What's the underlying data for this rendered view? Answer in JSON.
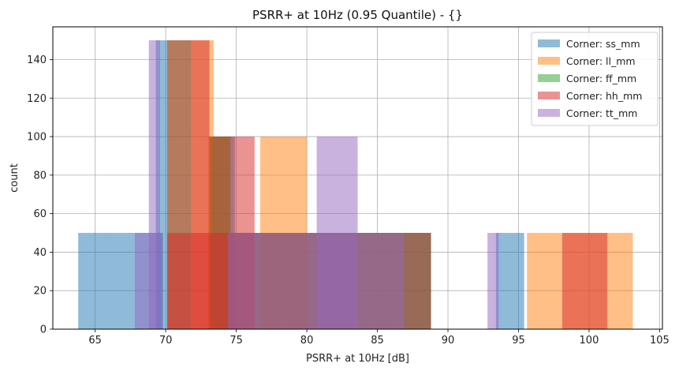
{
  "chart_data": {
    "type": "bar",
    "title": "PSRR+ at 10Hz (0.95 Quantile) - {}",
    "xlabel": "PSRR+ at 10Hz [dB]",
    "ylabel": "count",
    "xlim": [
      62,
      105.2
    ],
    "ylim": [
      0,
      157
    ],
    "xticks": [
      65,
      70,
      75,
      80,
      85,
      90,
      95,
      100,
      105
    ],
    "yticks": [
      0,
      20,
      40,
      60,
      80,
      100,
      120,
      140
    ],
    "grid": true,
    "legend_position": "top-right",
    "series": [
      {
        "name": "Corner: ss_mm",
        "color": "#1f77b4",
        "bars": [
          {
            "x0": 63.8,
            "x1": 65.8,
            "count": 50
          },
          {
            "x0": 65.8,
            "x1": 67.8,
            "count": 50
          },
          {
            "x0": 67.8,
            "x1": 69.8,
            "count": 50
          },
          {
            "x0": 69.3,
            "x1": 70.1,
            "count": 150
          },
          {
            "x0": 73.3,
            "x1": 74.9,
            "count": 100
          },
          {
            "x0": 74.4,
            "x1": 76.4,
            "count": 50
          },
          {
            "x0": 76.4,
            "x1": 78.4,
            "count": 50
          },
          {
            "x0": 78.4,
            "x1": 80.4,
            "count": 50
          },
          {
            "x0": 80.4,
            "x1": 82.4,
            "count": 50
          },
          {
            "x0": 82.4,
            "x1": 84.4,
            "count": 50
          },
          {
            "x0": 84.4,
            "x1": 86.4,
            "count": 50
          },
          {
            "x0": 86.4,
            "x1": 88.8,
            "count": 50
          },
          {
            "x0": 93.4,
            "x1": 95.4,
            "count": 50
          }
        ]
      },
      {
        "name": "Corner: ll_mm",
        "color": "#ff7f0e",
        "bars": [
          {
            "x0": 71.8,
            "x1": 73.4,
            "count": 150
          },
          {
            "x0": 73.0,
            "x1": 74.5,
            "count": 100
          },
          {
            "x0": 76.7,
            "x1": 80.0,
            "count": 100
          },
          {
            "x0": 95.6,
            "x1": 99.4,
            "count": 50
          },
          {
            "x0": 99.4,
            "x1": 103.1,
            "count": 50
          }
        ]
      },
      {
        "name": "Corner: ff_mm",
        "color": "#2ca02c",
        "bars": [
          {
            "x0": 70.1,
            "x1": 71.8,
            "count": 150
          },
          {
            "x0": 73.1,
            "x1": 74.6,
            "count": 100
          },
          {
            "x0": 74.6,
            "x1": 88.8,
            "count": 50
          }
        ]
      },
      {
        "name": "Corner: hh_mm",
        "color": "#d62728",
        "bars": [
          {
            "x0": 70.1,
            "x1": 71.8,
            "count": 150
          },
          {
            "x0": 71.8,
            "x1": 73.1,
            "count": 150
          },
          {
            "x0": 73.1,
            "x1": 74.5,
            "count": 100
          },
          {
            "x0": 74.5,
            "x1": 76.3,
            "count": 100
          },
          {
            "x0": 70.1,
            "x1": 88.8,
            "count": 50
          },
          {
            "x0": 98.1,
            "x1": 101.3,
            "count": 50
          }
        ]
      },
      {
        "name": "Corner: tt_mm",
        "color": "#9467bd",
        "bars": [
          {
            "x0": 68.8,
            "x1": 69.6,
            "count": 150
          },
          {
            "x0": 67.8,
            "x1": 69.8,
            "count": 50
          },
          {
            "x0": 80.7,
            "x1": 83.6,
            "count": 100
          },
          {
            "x0": 74.4,
            "x1": 86.9,
            "count": 50
          },
          {
            "x0": 92.8,
            "x1": 93.6,
            "count": 50
          }
        ]
      }
    ]
  }
}
